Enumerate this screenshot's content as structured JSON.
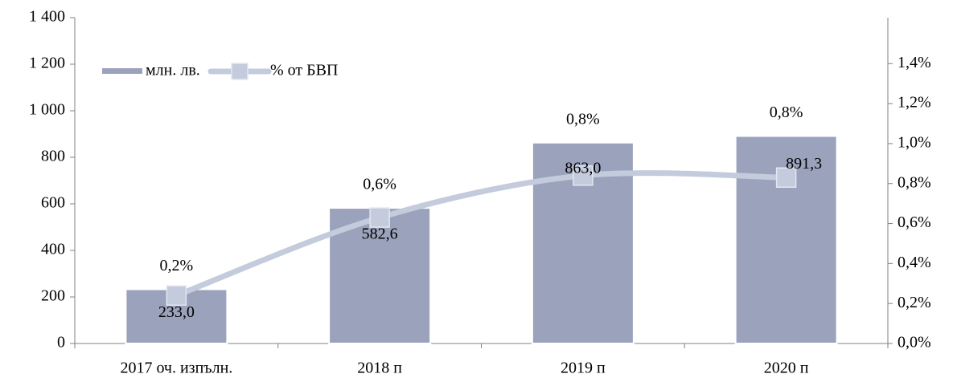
{
  "chart_data": {
    "type": "bar-line",
    "categories": [
      "2017 оч. изпълн.",
      "2018 п",
      "2019 п",
      "2020 п"
    ],
    "series": [
      {
        "name": "млн. лв.",
        "type": "bar",
        "color": "#9ba3bc",
        "values": [
          233.0,
          582.6,
          863.0,
          891.3
        ],
        "value_labels": [
          "233,0",
          "582,6",
          "863,0",
          "891,3"
        ]
      },
      {
        "name": "% от БВП",
        "type": "line",
        "axis": "y2",
        "color": "#c3cbdc",
        "values": [
          0.24,
          0.63,
          0.84,
          0.83
        ],
        "value_labels": [
          "0,2%",
          "0,6%",
          "0,8%",
          "0,8%"
        ]
      }
    ],
    "ylim": [
      0,
      1400
    ],
    "yticks": [
      0,
      200,
      400,
      600,
      800,
      {
        "value": 1000,
        "label": "1 000"
      },
      {
        "value": 1200,
        "label": "1 200"
      },
      {
        "value": 1400,
        "label": "1 400"
      }
    ],
    "y2lim": [
      0,
      1.63
    ],
    "y2ticks": [
      {
        "value": 0,
        "label": "0,0%"
      },
      {
        "value": 0.2,
        "label": "0,2%"
      },
      {
        "value": 0.4,
        "label": "0,4%"
      },
      {
        "value": 0.6,
        "label": "0,6%"
      },
      {
        "value": 0.8,
        "label": "0,8%"
      },
      {
        "value": 1.0,
        "label": "1,0%"
      },
      {
        "value": 1.2,
        "label": "1,2%"
      },
      {
        "value": 1.4,
        "label": "1,4%"
      }
    ],
    "legend": "upper left",
    "grid": false
  }
}
